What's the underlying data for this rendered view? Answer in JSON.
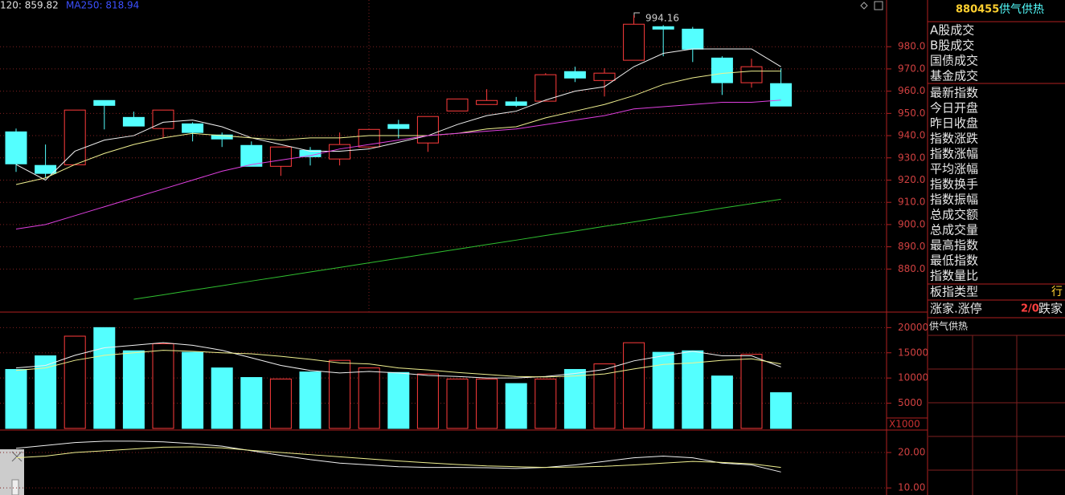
{
  "chart_data": [
    {
      "type": "candlestick",
      "legend": [
        {
          "label": "120: 859.82",
          "color": "#e0e0e0"
        },
        {
          "label": "MA250: 818.94",
          "color": "#3c50ff"
        }
      ],
      "annotation": "994.16",
      "up_color": "#ff3c3c",
      "down_color": "#54ffff",
      "open": [
        941.7,
        926.6,
        926.9,
        955.8,
        948.2,
        943.2,
        945.3,
        940.3,
        935.6,
        926.2,
        933.4,
        929.5,
        934.9,
        945.0,
        936.7,
        951.1,
        954.0,
        955.2,
        955.5,
        968.8,
        964.8,
        973.9,
        989.0,
        987.9,
        974.9,
        963.8,
        963.4
      ],
      "high": [
        943.2,
        936.0,
        951.5,
        955.8,
        950.8,
        951.5,
        946.0,
        941.4,
        937.4,
        934.9,
        934.9,
        941.4,
        942.8,
        947.1,
        948.6,
        956.5,
        960.9,
        957.4,
        968.1,
        971.0,
        970.3,
        994.16,
        989.7,
        988.9,
        975.7,
        974.6,
        970.3
      ],
      "low": [
        923.7,
        920.8,
        926.9,
        942.8,
        944.3,
        938.8,
        937.4,
        934.9,
        926.2,
        921.9,
        926.6,
        926.6,
        934.9,
        938.8,
        932.7,
        951.1,
        954.0,
        952.9,
        955.5,
        964.1,
        957.6,
        973.9,
        975.7,
        973.1,
        958.3,
        961.6,
        953.3
      ],
      "close": [
        927.3,
        923.0,
        951.5,
        953.6,
        944.3,
        951.5,
        941.4,
        938.5,
        926.2,
        934.9,
        930.5,
        936.0,
        942.8,
        943.2,
        948.6,
        956.5,
        955.8,
        953.6,
        967.4,
        965.9,
        968.1,
        990.1,
        987.9,
        978.9,
        963.8,
        971.0,
        953.3
      ],
      "lines": [
        {
          "color": "#f0f0f0",
          "values": [
            927,
            920,
            933,
            938,
            940,
            946,
            947,
            944,
            939,
            936,
            933,
            933,
            934,
            937,
            940,
            945,
            949,
            951,
            956,
            960,
            962,
            971,
            977,
            979,
            979,
            979,
            971
          ]
        },
        {
          "color": "#f0f090",
          "values": [
            918,
            921,
            927,
            932,
            936,
            939,
            941,
            940,
            939,
            938,
            939,
            939,
            940,
            940,
            940,
            941,
            943,
            944,
            948,
            951,
            954,
            958,
            963,
            966,
            968,
            969,
            969
          ]
        },
        {
          "color": "#e040e0",
          "values": [
            898,
            900,
            904,
            908,
            912,
            916,
            920,
            924,
            927,
            929,
            931,
            934,
            936,
            938,
            940,
            941,
            942,
            943,
            945,
            947,
            949,
            952,
            953,
            954,
            955,
            955,
            956
          ]
        },
        {
          "color": "#30c030",
          "values": [
            null,
            null,
            null,
            null,
            866.4,
            868.4,
            870.5,
            872.5,
            874.6,
            876.6,
            878.7,
            880.7,
            882.8,
            884.8,
            886.9,
            888.9,
            891.0,
            893.0,
            895.1,
            897.1,
            899.2,
            901.2,
            903.3,
            905.3,
            907.4,
            909.4,
            911.4
          ]
        }
      ],
      "ylim": [
        861,
        1001
      ],
      "yticks": [
        {
          "value": 880,
          "label": "880.0"
        },
        {
          "value": 890,
          "label": "890.0"
        },
        {
          "value": 900,
          "label": "900.0"
        },
        {
          "value": 910,
          "label": "910.0"
        },
        {
          "value": 920,
          "label": "920.0"
        },
        {
          "value": 930,
          "label": "930.0"
        },
        {
          "value": 940,
          "label": "940.0"
        },
        {
          "value": 950,
          "label": "950.0"
        },
        {
          "value": 960,
          "label": "960.0"
        },
        {
          "value": 970,
          "label": "970.0"
        },
        {
          "value": 980,
          "label": "980.0"
        }
      ],
      "grid": true
    },
    {
      "type": "bar",
      "unit_label": "X1000",
      "values": [
        11700,
        14400,
        18300,
        20000,
        15400,
        16800,
        15100,
        12000,
        10100,
        9800,
        11200,
        13500,
        12000,
        11100,
        10800,
        9800,
        9800,
        8900,
        9800,
        11700,
        12800,
        17000,
        15100,
        15400,
        10400,
        14700,
        7100
      ],
      "colors": [
        "#54ffff",
        "#54ffff",
        "#ff3c3c",
        "#54ffff",
        "#54ffff",
        "#ff3c3c",
        "#54ffff",
        "#54ffff",
        "#54ffff",
        "#ff3c3c",
        "#54ffff",
        "#ff3c3c",
        "#ff3c3c",
        "#54ffff",
        "#ff3c3c",
        "#ff3c3c",
        "#ff3c3c",
        "#54ffff",
        "#ff3c3c",
        "#54ffff",
        "#ff3c3c",
        "#ff3c3c",
        "#54ffff",
        "#54ffff",
        "#54ffff",
        "#ff3c3c",
        "#54ffff"
      ],
      "hollow_color": "#ff3c3c",
      "lines": [
        {
          "color": "#f0f0f0",
          "values": [
            12000,
            12500,
            14500,
            16000,
            16500,
            17000,
            16500,
            15500,
            14000,
            12500,
            11500,
            11000,
            11300,
            11000,
            10500,
            10300,
            10000,
            10000,
            10300,
            10900,
            11700,
            13400,
            14400,
            15300,
            14400,
            14400,
            12200
          ]
        },
        {
          "color": "#f0f090",
          "values": [
            11500,
            12000,
            13500,
            14500,
            15000,
            15500,
            15300,
            15000,
            14800,
            14300,
            13700,
            13000,
            12800,
            12000,
            11600,
            11100,
            10700,
            10300,
            10200,
            10400,
            10800,
            11800,
            12700,
            13000,
            13500,
            13800,
            12800
          ]
        }
      ],
      "ylim": [
        0,
        22600
      ],
      "yticks": [
        5000,
        10000,
        15000,
        20000
      ],
      "grid": true
    },
    {
      "type": "line",
      "series": [
        {
          "color": "#f0f0f0",
          "values": [
            21.2,
            22.0,
            22.8,
            23.2,
            23.2,
            23.0,
            22.5,
            21.8,
            20.5,
            19.2,
            18.0,
            17.0,
            16.5,
            16.0,
            15.8,
            15.8,
            15.7,
            15.5,
            15.8,
            16.5,
            17.5,
            18.5,
            19.0,
            18.5,
            17.0,
            16.5,
            14.5
          ]
        },
        {
          "color": "#f0f090",
          "values": [
            18.5,
            19.0,
            20.0,
            20.5,
            21.0,
            21.5,
            21.6,
            21.3,
            20.6,
            20.0,
            19.4,
            18.8,
            18.2,
            17.6,
            17.1,
            16.6,
            16.2,
            16.0,
            15.8,
            15.9,
            16.1,
            16.5,
            17.0,
            17.5,
            17.2,
            16.8,
            15.8
          ]
        }
      ],
      "ylim": [
        8,
        25.9
      ],
      "yticks": [
        {
          "value": 10,
          "label": "10.00"
        },
        {
          "value": 20,
          "label": "20.00"
        }
      ],
      "grid": true
    }
  ],
  "side_panel": {
    "code": "880455",
    "name": "供气供热",
    "trade_items": [
      "A股成交",
      "B股成交",
      "国债成交",
      "基金成交"
    ],
    "index_items": [
      "最新指数",
      "今日开盘",
      "昨日收盘",
      "指数涨跌",
      "指数涨幅",
      "平均涨幅",
      "指数换手",
      "指数振幅",
      "总成交额",
      "总成交量",
      "最高指数",
      "最低指数",
      "指数量比"
    ],
    "type_label": "板指类型",
    "type_value": "行",
    "ratio_label": "涨家.涨停",
    "ratio_value": "2/0",
    "fall_label": "跌家",
    "mini_title": "供气供热"
  }
}
